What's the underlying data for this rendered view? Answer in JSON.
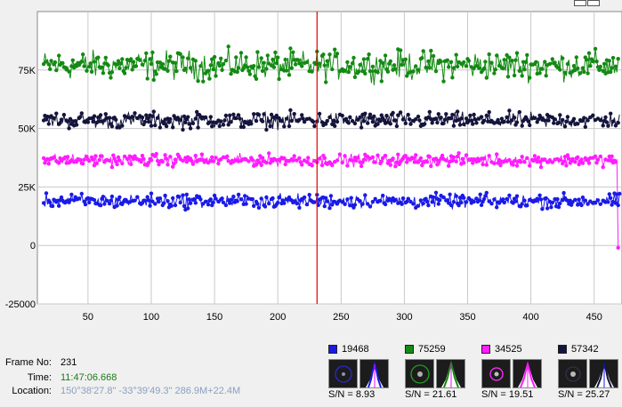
{
  "chart_data": {
    "type": "line",
    "xlim": [
      10,
      472
    ],
    "ylim": [
      -25000,
      100000
    ],
    "x_ticks": [
      "50",
      "100",
      "150",
      "200",
      "250",
      "300",
      "350",
      "400",
      "450"
    ],
    "x_tick_values": [
      50,
      100,
      150,
      200,
      250,
      300,
      350,
      400,
      450
    ],
    "y_ticks": [
      "75K",
      "50K",
      "25K",
      "0",
      "-25000"
    ],
    "y_tick_values": [
      75000,
      50000,
      25000,
      0,
      -25000
    ],
    "marker_x": 231,
    "grid": true,
    "series": [
      {
        "color": "#138a13",
        "mean": 77000,
        "noise": 4500,
        "x_start": 15,
        "x_end": 470
      },
      {
        "color": "#14143c",
        "mean": 53500,
        "noise": 2500,
        "x_start": 15,
        "x_end": 470
      },
      {
        "color": "#ff1cff",
        "mean": 36500,
        "noise": 1800,
        "x_start": 15,
        "x_end": 470,
        "end_value": -1000
      },
      {
        "color": "#1a1ae8",
        "mean": 19000,
        "noise": 2200,
        "x_start": 15,
        "x_end": 470
      }
    ]
  },
  "info": {
    "frame_label": "Frame No:",
    "frame_value": "231",
    "time_label": "Time:",
    "time_value": "11:47:06.668",
    "location_label": "Location:",
    "location_value": "150°38'27.8\" -33°39'49.3\" 286.9M+22.4M"
  },
  "stars": [
    {
      "count": "19468",
      "color": "#1a1ae8",
      "sn_label": "S/N =",
      "sn_value": "8.93"
    },
    {
      "count": "75259",
      "color": "#138a13",
      "sn_label": "S/N =",
      "sn_value": "21.61"
    },
    {
      "count": "34525",
      "color": "#ff1cff",
      "sn_label": "S/N =",
      "sn_value": "19.51"
    },
    {
      "count": "57342",
      "color": "#14143c",
      "sn_label": "S/N =",
      "sn_value": "25.27"
    }
  ],
  "colors": {
    "plot_background": "#ffffff",
    "panel_background": "#f0f0f0",
    "grid": "#c8c8c8",
    "marker": "#e00000",
    "time_value": "#1a7a1a",
    "location_value": "#8aa0c0"
  }
}
